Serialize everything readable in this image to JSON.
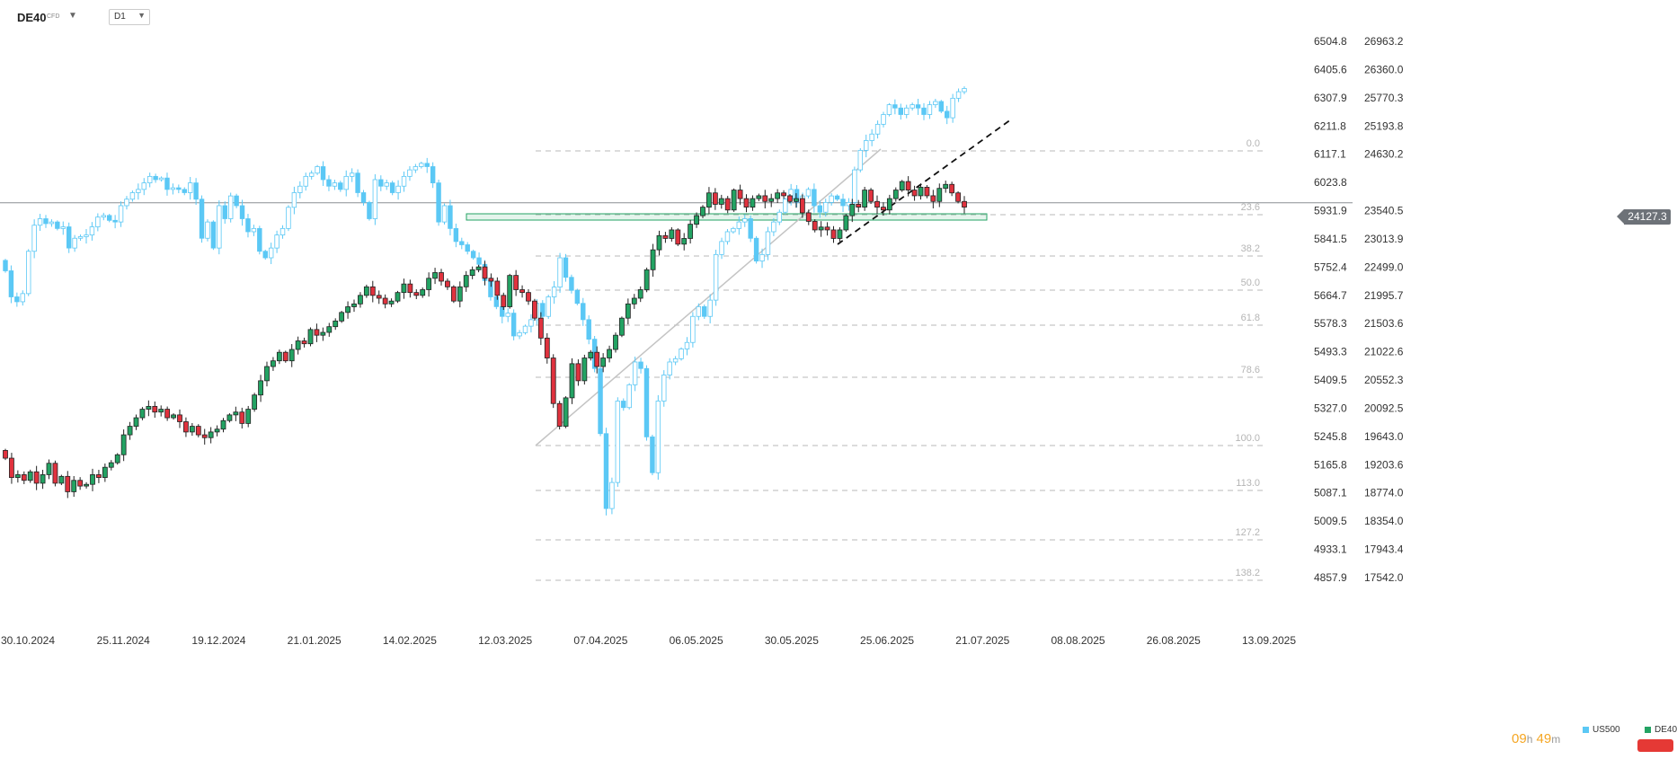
{
  "header": {
    "symbol": "DE40",
    "symbol_type": "CFD",
    "timeframe": "D1"
  },
  "price_tag": "24127.3",
  "countdown": {
    "hours": "09",
    "hours_unit": "h",
    "minutes": "49",
    "minutes_unit": "m"
  },
  "legend": [
    {
      "name": "US500",
      "color": "#5bc8f5"
    },
    {
      "name": "DE40",
      "color": "#23a363"
    }
  ],
  "colors": {
    "up": "#23a363",
    "down": "#e0323e",
    "us500": "#5bc8f5",
    "fib": "#c8c8c8",
    "zone": "#23a363"
  },
  "chart_data": {
    "type": "candlestick",
    "x_axis": {
      "labels": [
        "30.10.2024",
        "25.11.2024",
        "19.12.2024",
        "21.01.2025",
        "14.02.2025",
        "12.03.2025",
        "07.04.2025",
        "06.05.2025",
        "30.05.2025",
        "25.06.2025",
        "21.07.2025",
        "08.08.2025",
        "26.08.2025",
        "13.09.2025"
      ]
    },
    "y_axis_us500": {
      "labels": [
        "6504.8",
        "6405.6",
        "6307.9",
        "6211.8",
        "6117.1",
        "6023.8",
        "5931.9",
        "5841.5",
        "5752.4",
        "5664.7",
        "5578.3",
        "5493.3",
        "5409.5",
        "5327.0",
        "5245.8",
        "5165.8",
        "5087.1",
        "5009.5",
        "4933.1",
        "4857.9"
      ]
    },
    "y_axis_de40": {
      "labels": [
        "26963.2",
        "26360.0",
        "25770.3",
        "25193.8",
        "24630.2",
        "24127.3",
        "23540.5",
        "23013.9",
        "22499.0",
        "21995.7",
        "21503.6",
        "21022.6",
        "20552.3",
        "20092.5",
        "19643.0",
        "19203.6",
        "18774.0",
        "18354.0",
        "17943.4",
        "17542.0"
      ]
    },
    "fib_levels": [
      "0.0",
      "23.6",
      "38.2",
      "50.0",
      "61.8",
      "78.6",
      "100.0",
      "113.0",
      "127.2",
      "138.2"
    ],
    "de40_path": [
      19640,
      19300,
      19350,
      19250,
      19400,
      19200,
      19350,
      19550,
      19200,
      19320,
      19050,
      19250,
      19150,
      19180,
      19350,
      19300,
      19480,
      19560,
      19700,
      20050,
      20200,
      20350,
      20500,
      20550,
      20450,
      20500,
      20350,
      20400,
      20280,
      20100,
      20200,
      20050,
      20000,
      20100,
      20150,
      20300,
      20400,
      20450,
      20250,
      20500,
      20750,
      21000,
      21250,
      21350,
      21500,
      21350,
      21550,
      21700,
      21650,
      21900,
      21800,
      21850,
      21950,
      22050,
      22200,
      22300,
      22350,
      22500,
      22650,
      22500,
      22450,
      22350,
      22400,
      22550,
      22700,
      22550,
      22500,
      22600,
      22800,
      22900,
      22750,
      22650,
      22400,
      22650,
      22850,
      22950,
      23000,
      22800,
      22750,
      22500,
      22300,
      22850,
      22600,
      22550,
      22400,
      22100,
      21750,
      21400,
      20600,
      20200,
      20700,
      21300,
      21000,
      21400,
      21500,
      21250,
      21400,
      21550,
      21800,
      22100,
      22350,
      22450,
      22600,
      22950,
      23300,
      23550,
      23500,
      23650,
      23400,
      23500,
      23750,
      23900,
      24050,
      24300,
      24100,
      24200,
      24000,
      24350,
      24200,
      24050,
      24200,
      24250,
      24150,
      24200,
      24300,
      24250,
      24150,
      24200,
      23950,
      23800,
      23650,
      23700,
      23650,
      23500,
      23650,
      23900,
      24100,
      24050,
      24350,
      24150,
      24050,
      24000,
      24200,
      24350,
      24500,
      24350,
      24250,
      24400,
      24250,
      24150,
      24380,
      24450,
      24300,
      24150,
      24050
    ],
    "us500_path": [
      5800,
      5720,
      5705,
      5730,
      5860,
      5940,
      5960,
      5945,
      5950,
      5930,
      5935,
      5870,
      5900,
      5905,
      5910,
      5935,
      5965,
      5970,
      5955,
      5950,
      6000,
      6020,
      6040,
      6050,
      6070,
      6090,
      6080,
      6085,
      6050,
      6055,
      6050,
      6040,
      6070,
      6020,
      5900,
      5950,
      5870,
      6000,
      5960,
      6030,
      6000,
      5960,
      5920,
      5930,
      5860,
      5840,
      5870,
      5910,
      5930,
      5995,
      6040,
      6060,
      6090,
      6100,
      6120,
      6080,
      6060,
      6070,
      6050,
      6090,
      6100,
      6040,
      6010,
      5960,
      6080,
      6060,
      6070,
      6040,
      6060,
      6090,
      6110,
      6120,
      6130,
      6120,
      6070,
      5950,
      6000,
      5930,
      5890,
      5880,
      5860,
      5840,
      5820,
      5770,
      5720,
      5690,
      5660,
      5670,
      5600,
      5610,
      5630,
      5650,
      5700,
      5660,
      5720,
      5750,
      5840,
      5780,
      5740,
      5700,
      5650,
      5590,
      5500,
      5300,
      5070,
      5150,
      5400,
      5380,
      5450,
      5520,
      5500,
      5290,
      5180,
      5400,
      5480,
      5520,
      5530,
      5560,
      5580,
      5660,
      5690,
      5660,
      5710,
      5850,
      5890,
      5920,
      5930,
      5950,
      5960,
      5900,
      5830,
      5850,
      5920,
      5950,
      5980,
      6020,
      6050,
      6010,
      6030,
      6050,
      6000,
      5980,
      6010,
      6030,
      6020,
      6000,
      6010,
      6110,
      6170,
      6200,
      6220,
      6250,
      6280,
      6310,
      6300,
      6280,
      6300,
      6310,
      6300,
      6280,
      6310,
      6320,
      6290,
      6270,
      6330,
      6350,
      6360
    ]
  }
}
